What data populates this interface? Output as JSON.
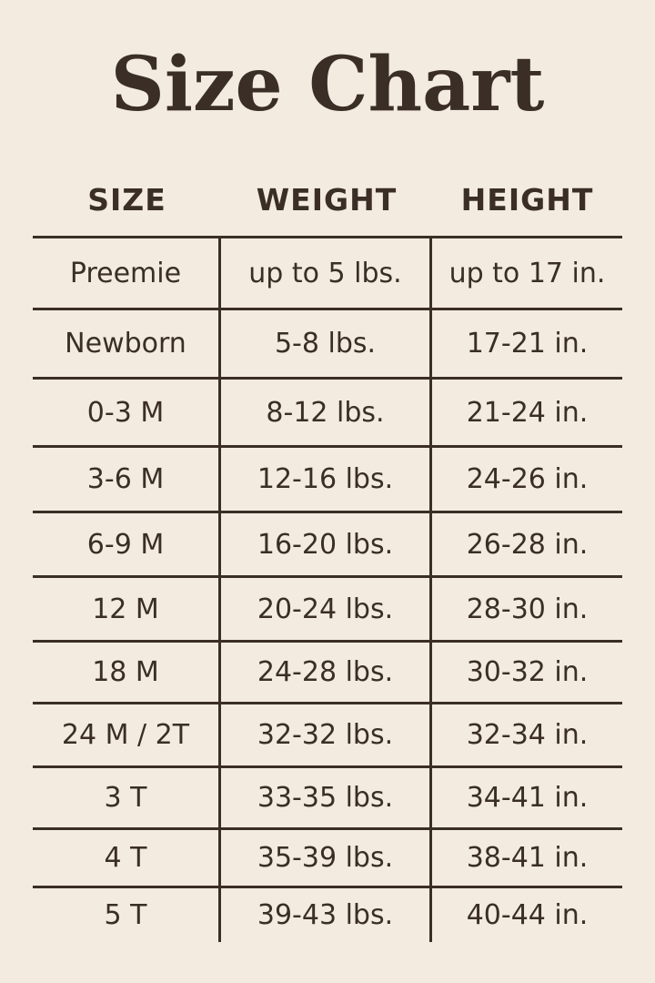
{
  "title": "Size Chart",
  "headers": [
    "SIZE",
    "WEIGHT",
    "HEIGHT"
  ],
  "rows": [
    [
      "Preemie",
      "up to 5 lbs.",
      "up to 17 in."
    ],
    [
      "Newborn",
      "5-8 lbs.",
      "17-21 in."
    ],
    [
      "0-3 M",
      "8-12 lbs.",
      "21-24 in."
    ],
    [
      "3-6 M",
      "12-16 lbs.",
      "24-26 in."
    ],
    [
      "6-9 M",
      "16-20 lbs.",
      "26-28 in."
    ],
    [
      "12 M",
      "20-24 lbs.",
      "28-30 in."
    ],
    [
      "18 M",
      "24-28 lbs.",
      "30-32 in."
    ],
    [
      "24 M / 2T",
      "32-32 lbs.",
      "32-34 in."
    ],
    [
      "3 T",
      "33-35 lbs.",
      "34-41 in."
    ],
    [
      "4 T",
      "35-39 lbs.",
      "38-41 in."
    ],
    [
      "5 T",
      "39-43 lbs.",
      "40-44 in."
    ]
  ],
  "colors": {
    "background": "#f3ebe0",
    "text": "#3a2e26"
  }
}
